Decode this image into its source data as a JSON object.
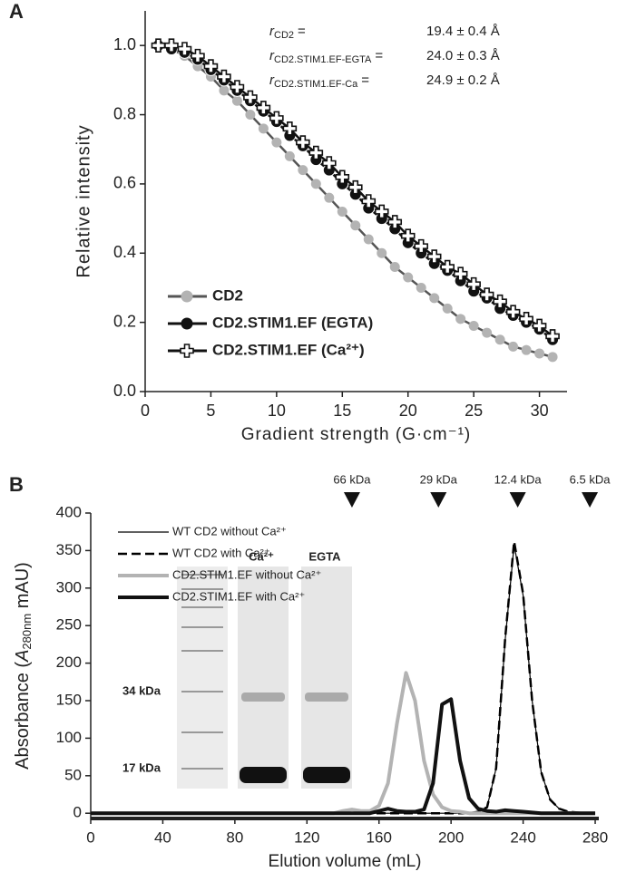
{
  "chart_data": [
    {
      "type": "scatter",
      "panel": "A",
      "xlabel": "Gradient strength (G·cm⁻¹)",
      "ylabel": "Relative intensity",
      "xlim": [
        0,
        32.1
      ],
      "ylim": [
        0,
        1.1
      ],
      "xticks": [
        0,
        5,
        10,
        15,
        20,
        25,
        30
      ],
      "yticks": [
        {
          "value": 0,
          "label": "0.0"
        },
        0.2,
        0.4,
        0.6,
        0.8,
        {
          "value": 1,
          "label": "1.0"
        }
      ],
      "annotations": [
        {
          "symbol": "r",
          "subscript": "CD2",
          "sign": "=",
          "value": "19.4 ± 0.4 Å"
        },
        {
          "symbol": "r",
          "subscript": "CD2.STIM1.EF-EGTA",
          "sign": "=",
          "value": "24.0 ± 0.3 Å"
        },
        {
          "symbol": "r",
          "subscript": "CD2.STIM1.EF-Ca",
          "sign": "=",
          "value": "24.9 ± 0.2 Å"
        }
      ],
      "x": [
        1,
        2,
        3,
        4,
        5,
        6,
        7,
        8,
        9,
        10,
        11,
        12,
        13,
        14,
        15,
        16,
        17,
        18,
        19,
        20,
        21,
        22,
        23,
        24,
        25,
        26,
        27,
        28,
        29,
        30,
        31
      ],
      "series": [
        {
          "name": "CD2",
          "color": "#b3b3b3",
          "line_color": "#555555",
          "marker": "circle",
          "values": [
            1.0,
            0.99,
            0.97,
            0.94,
            0.91,
            0.87,
            0.84,
            0.8,
            0.76,
            0.72,
            0.68,
            0.64,
            0.6,
            0.56,
            0.52,
            0.48,
            0.44,
            0.4,
            0.36,
            0.33,
            0.3,
            0.27,
            0.24,
            0.21,
            0.19,
            0.17,
            0.15,
            0.13,
            0.12,
            0.11,
            0.1
          ]
        },
        {
          "name": "CD2.STIM1.EF (EGTA)",
          "color": "#111111",
          "line_color": "#111111",
          "marker": "circle",
          "values": [
            1.0,
            0.99,
            0.98,
            0.96,
            0.93,
            0.9,
            0.87,
            0.84,
            0.81,
            0.78,
            0.74,
            0.71,
            0.67,
            0.64,
            0.6,
            0.57,
            0.53,
            0.5,
            0.47,
            0.43,
            0.4,
            0.37,
            0.35,
            0.32,
            0.29,
            0.27,
            0.24,
            0.22,
            0.2,
            0.18,
            0.15
          ]
        },
        {
          "name": "CD2.STIM1.EF (Ca²⁺)",
          "color": "#ffffff",
          "line_color": "#111111",
          "marker": "plus",
          "values": [
            1.0,
            1.0,
            0.99,
            0.97,
            0.94,
            0.91,
            0.88,
            0.85,
            0.82,
            0.79,
            0.76,
            0.72,
            0.69,
            0.66,
            0.62,
            0.59,
            0.55,
            0.52,
            0.49,
            0.45,
            0.42,
            0.39,
            0.36,
            0.34,
            0.31,
            0.28,
            0.26,
            0.23,
            0.21,
            0.19,
            0.16
          ]
        }
      ]
    },
    {
      "type": "line",
      "panel": "B",
      "xlabel": "Elution volume (mL)",
      "ylabel": {
        "prefix": "Absorbance (",
        "symbol": "A",
        "subscript": "280nm",
        "suffix": " mAU)"
      },
      "xlim": [
        0,
        282
      ],
      "ylim": [
        -7,
        400
      ],
      "xticks": [
        0,
        40,
        80,
        120,
        160,
        200,
        240,
        280
      ],
      "yticks": [
        0,
        50,
        100,
        150,
        200,
        250,
        300,
        350,
        400
      ],
      "markers": [
        {
          "label": "66 kDa",
          "x": 145
        },
        {
          "label": "29 kDa",
          "x": 193
        },
        {
          "label": "12.4 kDa",
          "x": 237
        },
        {
          "label": "6.5 kDa",
          "x": 277
        }
      ],
      "inset": {
        "lanes": [
          "Ca²⁺",
          "EGTA"
        ],
        "sizes": [
          "34 kDa",
          "17 kDa"
        ]
      },
      "x": [
        0,
        5,
        10,
        15,
        20,
        25,
        30,
        35,
        40,
        45,
        50,
        55,
        60,
        65,
        70,
        75,
        80,
        85,
        90,
        95,
        100,
        105,
        110,
        115,
        120,
        125,
        130,
        135,
        140,
        145,
        150,
        155,
        160,
        165,
        170,
        175,
        180,
        185,
        190,
        195,
        200,
        205,
        210,
        215,
        220,
        225,
        230,
        235,
        240,
        245,
        250,
        255,
        260,
        265,
        270,
        275,
        280
      ],
      "series": [
        {
          "name": "WT CD2 without Ca²⁺",
          "color": "#000000",
          "width": 1.2,
          "dashed": false,
          "values": [
            0,
            0,
            0,
            0,
            0,
            0,
            0,
            0,
            0,
            0,
            0,
            0,
            0,
            0,
            0,
            0,
            0,
            0,
            0,
            0,
            0,
            0,
            0,
            0,
            0,
            0,
            0,
            0,
            0,
            0,
            0,
            0,
            0,
            0,
            0,
            0,
            0,
            0,
            0,
            0,
            0,
            0,
            0,
            2,
            8,
            60,
            230,
            358,
            290,
            150,
            55,
            18,
            6,
            2,
            1,
            0,
            0
          ]
        },
        {
          "name": "WT CD2 with Ca²⁺",
          "color": "#000000",
          "width": 2.5,
          "dashed": true,
          "values": [
            0,
            0,
            0,
            0,
            0,
            0,
            0,
            0,
            0,
            0,
            0,
            0,
            0,
            0,
            0,
            0,
            0,
            0,
            0,
            0,
            0,
            0,
            0,
            0,
            0,
            0,
            0,
            0,
            0,
            0,
            0,
            0,
            0,
            0,
            0,
            0,
            0,
            0,
            0,
            0,
            0,
            0,
            0,
            2,
            8,
            60,
            232,
            362,
            292,
            150,
            55,
            18,
            6,
            2,
            1,
            0,
            0
          ]
        },
        {
          "name": "CD2.STIM1.EF without Ca²⁺",
          "color": "#b3b3b3",
          "width": 4,
          "dashed": false,
          "values": [
            0,
            0,
            0,
            0,
            0,
            0,
            0,
            0,
            0,
            0,
            0,
            0,
            0,
            0,
            0,
            0,
            0,
            0,
            0,
            0,
            0,
            0,
            0,
            0,
            0,
            0,
            0,
            0,
            3,
            5,
            3,
            3,
            10,
            40,
            120,
            187,
            150,
            70,
            25,
            8,
            3,
            2,
            0,
            0,
            0,
            0,
            0,
            0,
            0,
            0,
            0,
            0,
            0,
            0,
            0,
            0,
            0
          ]
        },
        {
          "name": "CD2.STIM1.EF with Ca²⁺",
          "color": "#111111",
          "width": 4,
          "dashed": false,
          "values": [
            0,
            0,
            0,
            0,
            0,
            0,
            0,
            0,
            0,
            0,
            0,
            0,
            0,
            0,
            0,
            0,
            0,
            0,
            0,
            0,
            0,
            0,
            0,
            0,
            0,
            0,
            0,
            0,
            0,
            0,
            0,
            0,
            3,
            6,
            3,
            2,
            2,
            5,
            40,
            145,
            152,
            70,
            20,
            6,
            3,
            2,
            4,
            3,
            2,
            1,
            0,
            0,
            0,
            0,
            0,
            0,
            0
          ]
        }
      ]
    }
  ]
}
